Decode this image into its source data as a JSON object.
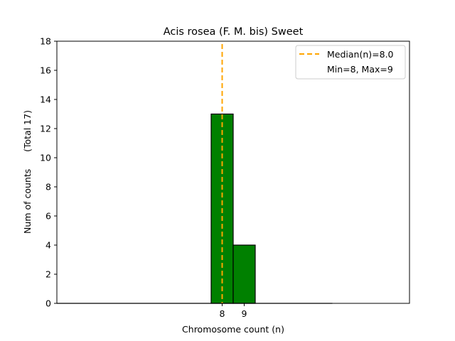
{
  "chart_data": {
    "type": "bar",
    "title": "Acis rosea (F. M. bis) Sweet",
    "xlabel": "Chromosome count (n)",
    "ylabel": "Num of counts      (Total 17)",
    "x_ticks": [
      "8",
      "9"
    ],
    "y_ticks": [
      "0",
      "2",
      "4",
      "6",
      "8",
      "10",
      "12",
      "14",
      "16",
      "18"
    ],
    "ylim": [
      0,
      18
    ],
    "xlim": [
      0.5,
      16.5
    ],
    "bars": [
      {
        "x_start": 7.5,
        "x_end": 8.5,
        "value": 13
      },
      {
        "x_start": 8.5,
        "x_end": 9.5,
        "value": 4
      }
    ],
    "baseline_extent": [
      0.5,
      13
    ],
    "median_line": {
      "x": 8.0,
      "label": "Median(n)=8.0"
    },
    "legend": [
      "Median(n)=8.0",
      "Min=8, Max=9"
    ],
    "legend_position": "top-right",
    "bar_color": "#008000",
    "median_color": "#FFA500",
    "grid": false
  }
}
